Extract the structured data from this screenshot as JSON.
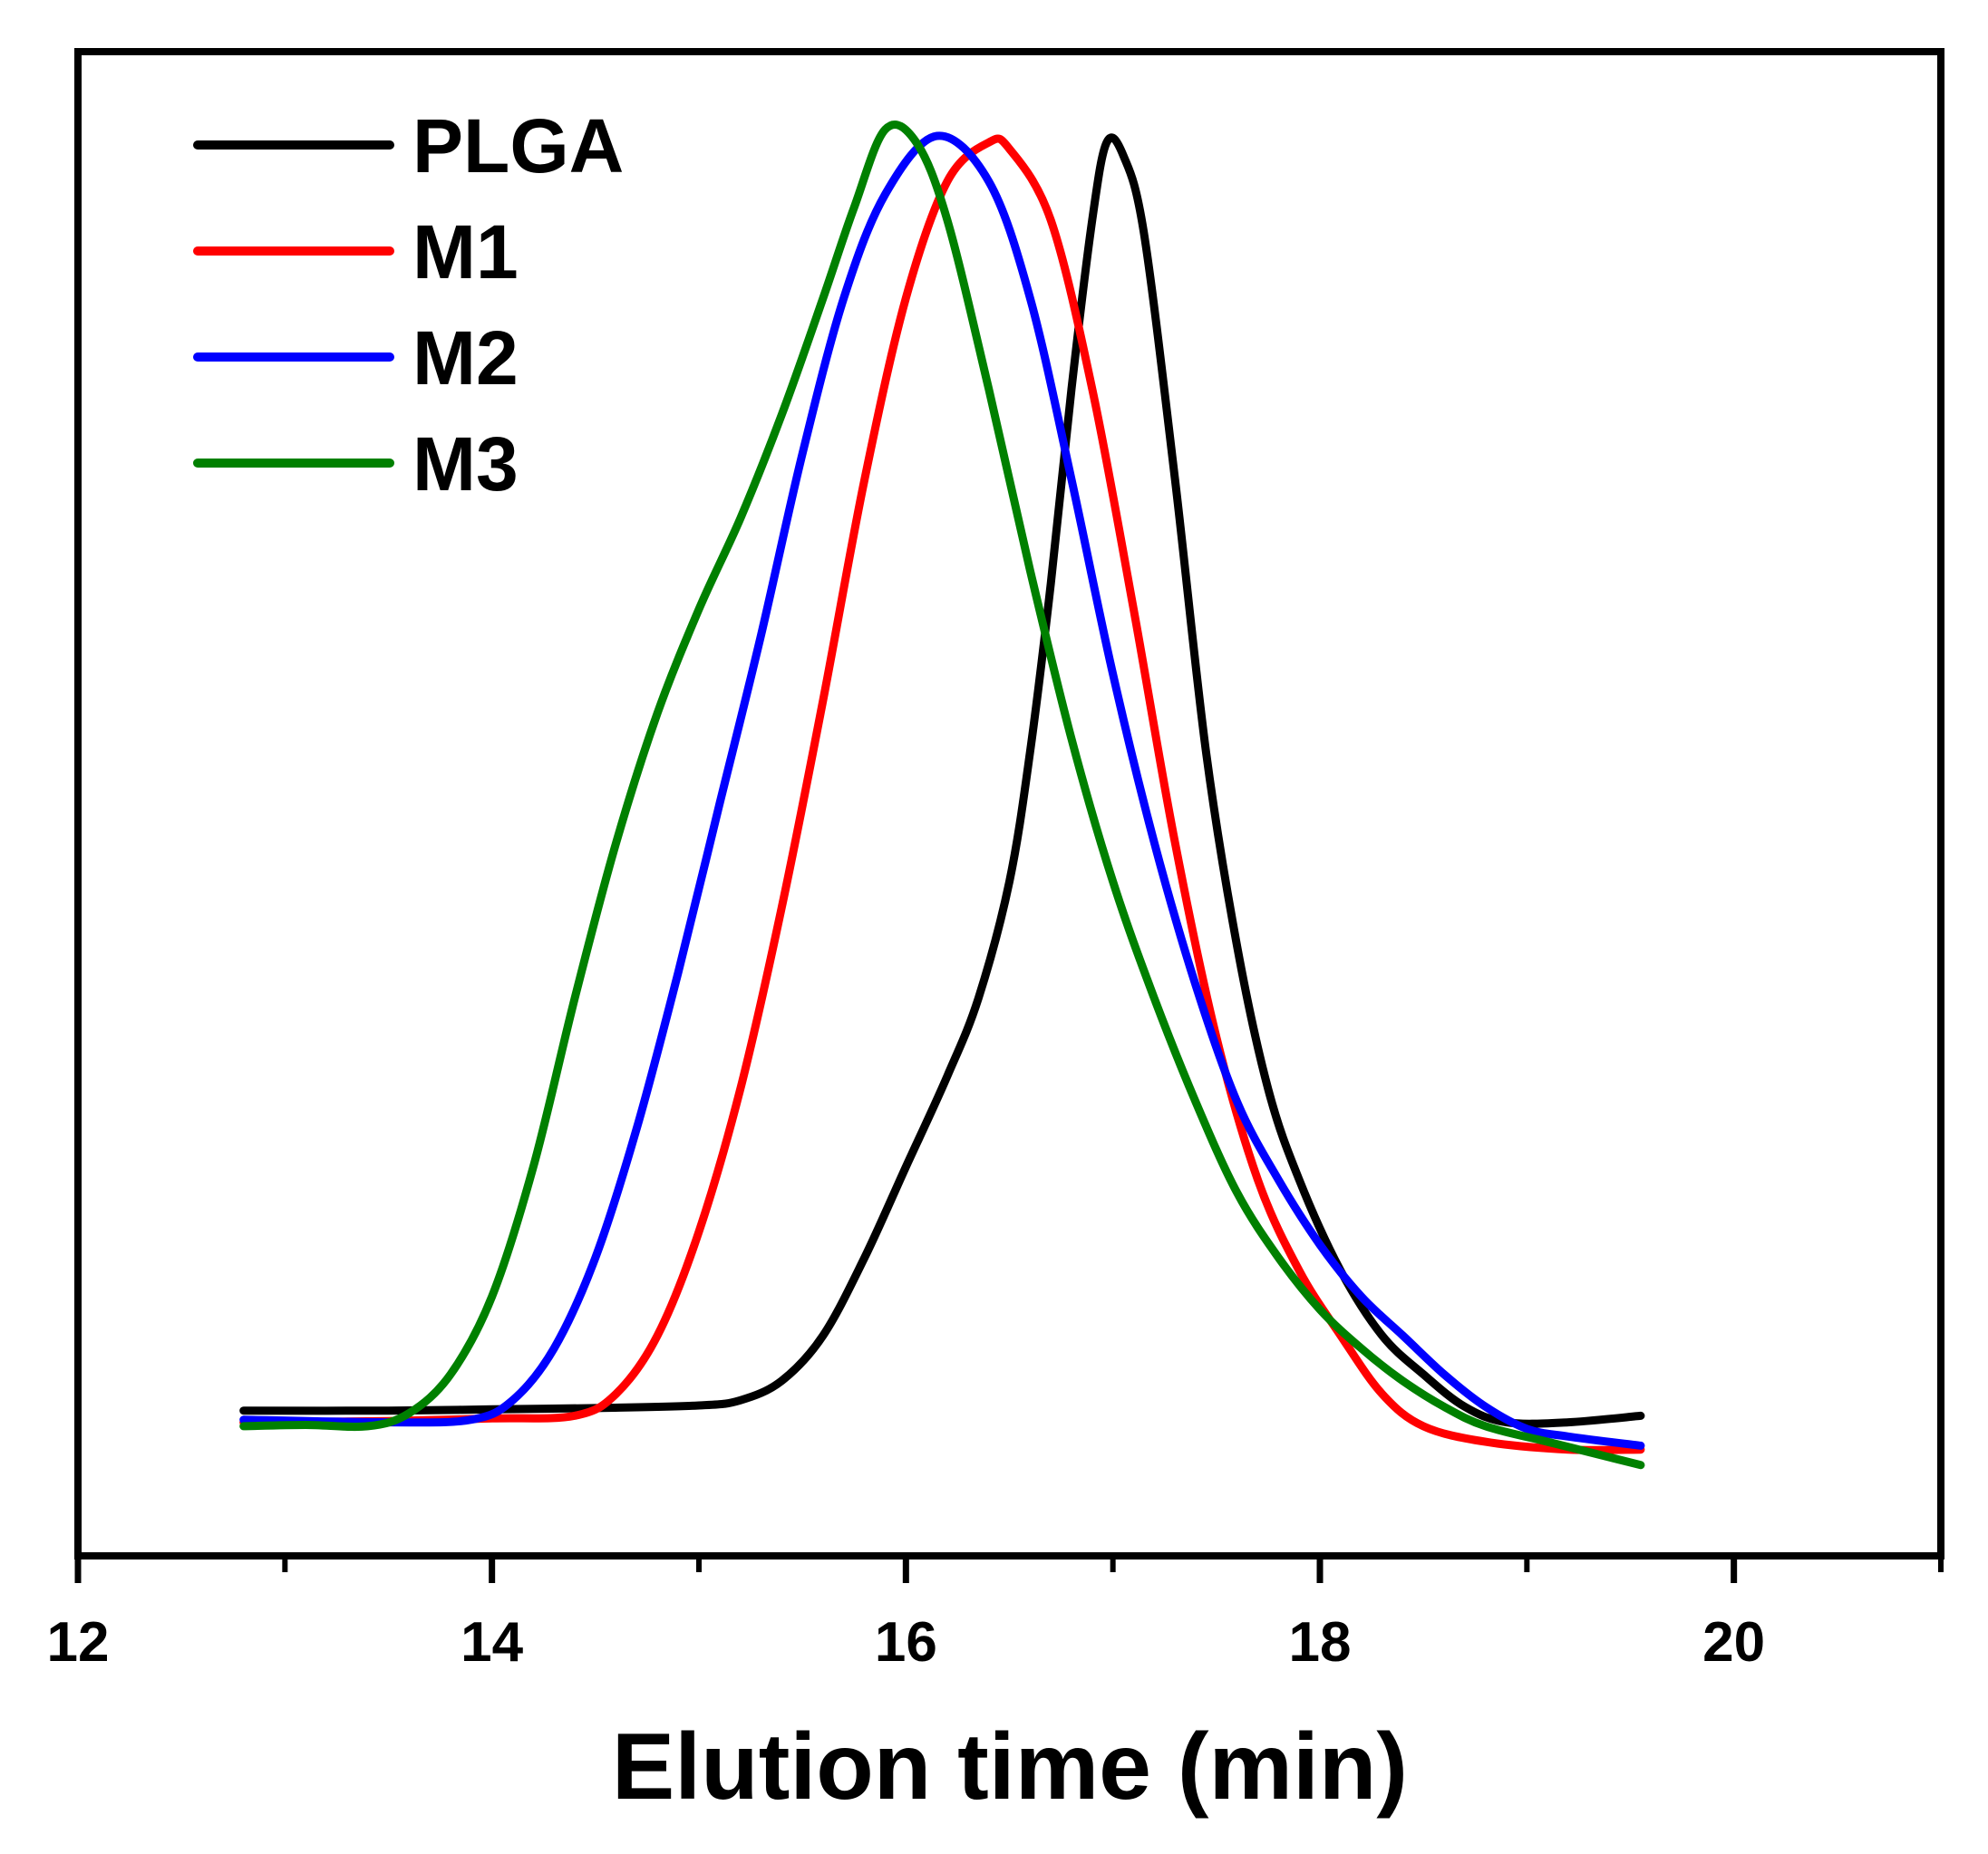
{
  "chart_data": {
    "type": "line",
    "title": "",
    "xlabel": "Elution time (min)",
    "ylabel": "",
    "xlim": [
      12,
      21
    ],
    "ylim": [
      -0.1,
      1.06
    ],
    "x_ticks": [
      12,
      14,
      16,
      18,
      20
    ],
    "x_tick_labels": [
      "12",
      "14",
      "16",
      "18",
      "20"
    ],
    "x_minor_ticks": [
      13,
      15,
      17,
      19,
      21
    ],
    "grid": false,
    "legend": {
      "position": "top-left"
    },
    "series": [
      {
        "name": "PLGA",
        "color": "#000000",
        "points": [
          [
            12.8,
            0.012
          ],
          [
            13.5,
            0.012
          ],
          [
            14.0,
            0.013
          ],
          [
            14.5,
            0.014
          ],
          [
            15.0,
            0.016
          ],
          [
            15.2,
            0.02
          ],
          [
            15.4,
            0.035
          ],
          [
            15.6,
            0.07
          ],
          [
            15.8,
            0.13
          ],
          [
            16.0,
            0.2
          ],
          [
            16.2,
            0.27
          ],
          [
            16.35,
            0.33
          ],
          [
            16.5,
            0.42
          ],
          [
            16.6,
            0.52
          ],
          [
            16.7,
            0.65
          ],
          [
            16.8,
            0.8
          ],
          [
            16.9,
            0.93
          ],
          [
            16.97,
            0.99
          ],
          [
            17.05,
            0.98
          ],
          [
            17.15,
            0.92
          ],
          [
            17.3,
            0.73
          ],
          [
            17.45,
            0.52
          ],
          [
            17.6,
            0.37
          ],
          [
            17.75,
            0.26
          ],
          [
            17.9,
            0.19
          ],
          [
            18.1,
            0.12
          ],
          [
            18.3,
            0.07
          ],
          [
            18.5,
            0.04
          ],
          [
            18.7,
            0.015
          ],
          [
            18.9,
            0.003
          ],
          [
            19.2,
            0.003
          ],
          [
            19.55,
            0.008
          ]
        ]
      },
      {
        "name": "M1",
        "color": "#ff0000",
        "points": [
          [
            12.8,
            0.003
          ],
          [
            13.5,
            0.004
          ],
          [
            14.0,
            0.006
          ],
          [
            14.4,
            0.008
          ],
          [
            14.6,
            0.025
          ],
          [
            14.8,
            0.07
          ],
          [
            15.0,
            0.15
          ],
          [
            15.2,
            0.26
          ],
          [
            15.4,
            0.4
          ],
          [
            15.6,
            0.56
          ],
          [
            15.8,
            0.73
          ],
          [
            16.0,
            0.87
          ],
          [
            16.2,
            0.96
          ],
          [
            16.4,
            0.99
          ],
          [
            16.5,
            0.985
          ],
          [
            16.7,
            0.93
          ],
          [
            16.9,
            0.8
          ],
          [
            17.1,
            0.63
          ],
          [
            17.3,
            0.45
          ],
          [
            17.5,
            0.3
          ],
          [
            17.7,
            0.19
          ],
          [
            17.9,
            0.12
          ],
          [
            18.1,
            0.07
          ],
          [
            18.3,
            0.025
          ],
          [
            18.5,
            0.0
          ],
          [
            18.8,
            -0.012
          ],
          [
            19.2,
            -0.018
          ],
          [
            19.55,
            -0.018
          ]
        ]
      },
      {
        "name": "M2",
        "color": "#0000ff",
        "points": [
          [
            12.8,
            0.005
          ],
          [
            13.5,
            0.003
          ],
          [
            13.9,
            0.005
          ],
          [
            14.1,
            0.02
          ],
          [
            14.3,
            0.06
          ],
          [
            14.5,
            0.13
          ],
          [
            14.7,
            0.23
          ],
          [
            14.9,
            0.35
          ],
          [
            15.1,
            0.48
          ],
          [
            15.3,
            0.61
          ],
          [
            15.5,
            0.75
          ],
          [
            15.7,
            0.87
          ],
          [
            15.9,
            0.95
          ],
          [
            16.15,
            0.995
          ],
          [
            16.4,
            0.96
          ],
          [
            16.6,
            0.87
          ],
          [
            16.8,
            0.73
          ],
          [
            17.0,
            0.58
          ],
          [
            17.2,
            0.45
          ],
          [
            17.4,
            0.34
          ],
          [
            17.6,
            0.25
          ],
          [
            17.8,
            0.19
          ],
          [
            18.0,
            0.14
          ],
          [
            18.2,
            0.1
          ],
          [
            18.4,
            0.07
          ],
          [
            18.6,
            0.04
          ],
          [
            18.8,
            0.015
          ],
          [
            19.0,
            -0.002
          ],
          [
            19.2,
            -0.008
          ],
          [
            19.55,
            -0.015
          ]
        ]
      },
      {
        "name": "M3",
        "color": "#008000",
        "points": [
          [
            12.8,
            0.0
          ],
          [
            13.1,
            0.001
          ],
          [
            13.4,
            0.0
          ],
          [
            13.6,
            0.01
          ],
          [
            13.8,
            0.04
          ],
          [
            14.0,
            0.1
          ],
          [
            14.2,
            0.2
          ],
          [
            14.4,
            0.33
          ],
          [
            14.6,
            0.45
          ],
          [
            14.8,
            0.55
          ],
          [
            15.0,
            0.63
          ],
          [
            15.2,
            0.7
          ],
          [
            15.4,
            0.78
          ],
          [
            15.6,
            0.87
          ],
          [
            15.75,
            0.94
          ],
          [
            15.9,
            1.0
          ],
          [
            16.05,
            0.99
          ],
          [
            16.2,
            0.93
          ],
          [
            16.4,
            0.8
          ],
          [
            16.6,
            0.66
          ],
          [
            16.8,
            0.53
          ],
          [
            17.0,
            0.42
          ],
          [
            17.2,
            0.33
          ],
          [
            17.4,
            0.25
          ],
          [
            17.6,
            0.18
          ],
          [
            17.8,
            0.13
          ],
          [
            18.0,
            0.09
          ],
          [
            18.2,
            0.06
          ],
          [
            18.4,
            0.035
          ],
          [
            18.6,
            0.015
          ],
          [
            18.8,
            0.0
          ],
          [
            19.1,
            -0.012
          ],
          [
            19.3,
            -0.02
          ],
          [
            19.55,
            -0.03
          ]
        ]
      }
    ]
  }
}
